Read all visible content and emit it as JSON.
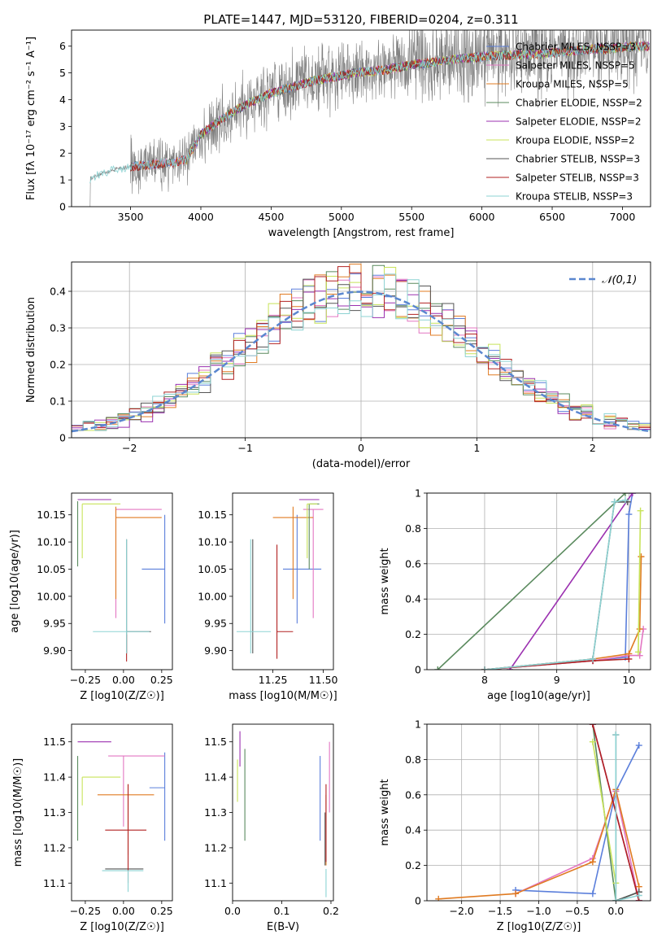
{
  "colors": {
    "series": [
      "#5b7fdb",
      "#e377c2",
      "#e07b22",
      "#5a8a5e",
      "#9b30b0",
      "#c8e35a",
      "#555555",
      "#b22222",
      "#8dd3d3"
    ],
    "spectrum": "#808080",
    "grid": "#b0b0b0",
    "normal_curve": "#5b87cf"
  },
  "chart_data": [
    {
      "id": "spectrum",
      "type": "line",
      "title": "PLATE=1447, MJD=53120, FIBERID=0204, z=0.311",
      "xlabel": "wavelength [Angstrom, rest frame]",
      "ylabel": "Flux [fλ 10⁻¹⁷ erg cm⁻² s⁻¹ A⁻¹]",
      "xlim": [
        3080,
        7200
      ],
      "ylim": [
        0,
        6.6
      ],
      "xticks": [
        3500,
        4000,
        4500,
        5000,
        5500,
        6000,
        6500,
        7000
      ],
      "yticks": [
        0,
        1,
        2,
        3,
        4,
        5,
        6
      ],
      "grid": false,
      "legend_position": "right",
      "legend": [
        "Chabrier MILES, NSSP=3",
        "Salpeter MILES, NSSP=5",
        "Kroupa MILES, NSSP=5",
        "Chabrier ELODIE, NSSP=2",
        "Salpeter ELODIE, NSSP=2",
        "Kroupa ELODIE, NSSP=2",
        "Chabrier STELIB, NSSP=3",
        "Salpeter STELIB, NSSP=3",
        "Kroupa STELIB, NSSP=3"
      ],
      "model_continuum": {
        "x": [
          3210,
          3300,
          3400,
          3500,
          3600,
          3700,
          3800,
          3900,
          4000,
          4100,
          4200,
          4300,
          4400,
          4500,
          4600,
          4700,
          4800,
          4900,
          5000,
          5100,
          5200,
          5300,
          5400,
          5500,
          5600,
          5700,
          5800,
          5900,
          6000,
          6100,
          6200,
          6300,
          6400,
          6500,
          6600,
          6700,
          6800,
          6900,
          7000,
          7100
        ],
        "y": [
          1.05,
          1.25,
          1.4,
          1.5,
          1.55,
          1.6,
          1.65,
          1.75,
          2.7,
          3.1,
          3.45,
          3.75,
          4.0,
          4.25,
          4.4,
          4.55,
          4.7,
          4.8,
          4.9,
          5.0,
          5.05,
          5.1,
          5.2,
          5.3,
          5.35,
          5.45,
          5.5,
          5.55,
          5.6,
          5.65,
          5.65,
          5.7,
          5.7,
          5.75,
          5.8,
          5.85,
          5.9,
          5.9,
          5.95,
          6.0
        ]
      }
    },
    {
      "id": "residuals",
      "type": "histogram",
      "xlabel": "(data-model)/error",
      "ylabel": "Normed distribution",
      "xlim": [
        -2.5,
        2.5
      ],
      "ylim": [
        0,
        0.48
      ],
      "xticks": [
        -2,
        -1,
        0,
        1,
        2
      ],
      "yticks": [
        0.0,
        0.1,
        0.2,
        0.3,
        0.4
      ],
      "grid": true,
      "legend_position": "top-right",
      "legend": [
        "𝒩(0,1)"
      ],
      "normal_pdf": {
        "mean": 0,
        "std": 1
      }
    },
    {
      "id": "age-vs-Z",
      "type": "errorbar",
      "xlabel": "Z [log10(Z/Z☉)]",
      "ylabel": "age  [log10(age/yr)]",
      "xlim": [
        -0.34,
        0.32
      ],
      "ylim": [
        9.865,
        10.19
      ],
      "xticks": [
        -0.25,
        0.0,
        0.25
      ],
      "xticklabels": [
        "−0.25",
        "0.00",
        "0.25"
      ],
      "yticks": [
        9.9,
        9.95,
        10.0,
        10.05,
        10.1,
        10.15
      ],
      "yticklabels": [
        "9.90",
        "9.95",
        "10.00",
        "10.05",
        "10.10",
        "10.15"
      ],
      "grid": false,
      "points": [
        {
          "x": 0.02,
          "y": 9.935,
          "x_err": [
            0.2,
            0.2
          ],
          "y_err": [
            0.05,
            0.17
          ]
        },
        {
          "x": 0.0,
          "y": 10.15,
          "x_err": [
            0.2,
            0.1
          ],
          "y_err": [
            0.03,
            0.02
          ]
        },
        {
          "x": -0.08,
          "y": 10.15,
          "x_err": [
            0.0,
            0.1
          ],
          "y_err": [
            0.2,
            0.02
          ]
        },
        {
          "x": -0.3,
          "y": 10.175,
          "x_err": [
            0.0,
            0.0
          ],
          "y_err": [
            0.12,
            0.0
          ]
        },
        {
          "x": 0.0,
          "y": 10.175,
          "x_err": [
            0.3,
            0.0
          ],
          "y_err": [
            0.0,
            0.0
          ]
        },
        {
          "x": -0.27,
          "y": 10.17,
          "x_err": [
            0.0,
            0.25
          ],
          "y_err": [
            0.1,
            0.0
          ]
        },
        {
          "x": 0.02,
          "y": 9.935,
          "x_err": [
            0.0,
            0.1
          ],
          "y_err": [
            0.04,
            0.17
          ]
        },
        {
          "x": 0.02,
          "y": 9.93,
          "x_err": [
            0.0,
            0.0
          ],
          "y_err": [
            0.05,
            0.17
          ]
        },
        {
          "x": 0.02,
          "y": 9.935,
          "x_err": [
            0.22,
            0.15
          ],
          "y_err": [
            0.04,
            0.17
          ]
        },
        {
          "x": 0.27,
          "y": 10.05,
          "x_err": [
            0.15,
            0.0
          ],
          "y_err": [
            0.1,
            0.1
          ]
        }
      ]
    },
    {
      "id": "age-vs-mass",
      "type": "errorbar",
      "xlabel": "mass [log10(M/M☉)]",
      "ylabel": "",
      "xlim": [
        11.05,
        11.55
      ],
      "ylim": [
        9.865,
        10.19
      ],
      "xticks": [
        11.25,
        11.5
      ],
      "xticklabels": [
        "11.25",
        "11.50"
      ],
      "yticks": [
        9.9,
        9.95,
        10.0,
        10.05,
        10.1,
        10.15
      ],
      "yticklabels": [
        "9.90",
        "9.95",
        "10.00",
        "10.05",
        "10.10",
        "10.15"
      ],
      "grid": false
    },
    {
      "id": "weight-vs-age",
      "type": "line",
      "xlabel": "age  [log10(age/yr)]",
      "ylabel": "mass weight",
      "xlim": [
        7.2,
        10.3
      ],
      "ylim": [
        0,
        1.0
      ],
      "xticks": [
        8,
        9,
        10
      ],
      "yticks": [
        0.0,
        0.2,
        0.4,
        0.6,
        0.8,
        1.0
      ],
      "grid": true,
      "series": [
        {
          "x": [
            8.0,
            9.5,
            9.95,
            10.0,
            10.05
          ],
          "y": [
            0.0,
            0.05,
            0.07,
            0.88,
            1.0
          ]
        },
        {
          "x": [
            8.0,
            9.5,
            10.0,
            10.15,
            10.2
          ],
          "y": [
            0.0,
            0.05,
            0.08,
            0.08,
            0.23
          ]
        },
        {
          "x": [
            8.0,
            9.5,
            10.0,
            10.15,
            10.17
          ],
          "y": [
            0.0,
            0.06,
            0.09,
            0.23,
            0.64
          ]
        },
        {
          "x": [
            7.35,
            9.95
          ],
          "y": [
            0.0,
            1.0
          ]
        },
        {
          "x": [
            8.35,
            10.05
          ],
          "y": [
            0.0,
            1.0
          ]
        },
        {
          "x": [
            10.13,
            10.16
          ],
          "y": [
            0.1,
            0.9
          ]
        },
        {
          "x": [
            8.0,
            9.5,
            9.8,
            9.98
          ],
          "y": [
            0.0,
            0.06,
            0.95,
            0.95
          ]
        },
        {
          "x": [
            8.0,
            9.5,
            10.0
          ],
          "y": [
            0.0,
            0.05,
            0.06
          ]
        },
        {
          "x": [
            8.0,
            9.5,
            9.8,
            9.95
          ],
          "y": [
            0.0,
            0.06,
            0.95,
            0.96
          ]
        }
      ]
    },
    {
      "id": "mass-vs-Z",
      "type": "errorbar",
      "xlabel": "Z [log10(Z/Z☉)]",
      "ylabel": "mass [log10(M/M☉)]",
      "xlim": [
        -0.34,
        0.32
      ],
      "ylim": [
        11.05,
        11.55
      ],
      "xticks": [
        -0.25,
        0.0,
        0.25
      ],
      "xticklabels": [
        "−0.25",
        "0.00",
        "0.25"
      ],
      "yticks": [
        11.1,
        11.2,
        11.3,
        11.4,
        11.5
      ],
      "yticklabels": [
        "11.1",
        "11.2",
        "11.3",
        "11.4",
        "11.5"
      ],
      "grid": false
    },
    {
      "id": "mass-vs-EBV",
      "type": "errorbar",
      "xlabel": "E(B-V)",
      "ylabel": "",
      "xlim": [
        0.0,
        0.205
      ],
      "ylim": [
        11.05,
        11.55
      ],
      "xticks": [
        0.0,
        0.1,
        0.2
      ],
      "xticklabels": [
        "0.0",
        "0.1",
        "0.2"
      ],
      "yticks": [
        11.1,
        11.2,
        11.3,
        11.4,
        11.5
      ],
      "yticklabels": [
        "11.1",
        "11.2",
        "11.3",
        "11.4",
        "11.5"
      ],
      "grid": false
    },
    {
      "id": "weight-vs-Z",
      "type": "line",
      "xlabel": "Z [log10(Z/Z☉)]",
      "ylabel": "mass weight",
      "xlim": [
        -2.45,
        0.45
      ],
      "ylim": [
        0,
        1.0
      ],
      "xticks": [
        -2.0,
        -1.5,
        -1.0,
        -0.5,
        0.0
      ],
      "xticklabels": [
        "−2.0",
        "−1.5",
        "−1.0",
        "−0.5",
        "0.0"
      ],
      "yticks": [
        0.0,
        0.2,
        0.4,
        0.6,
        0.8,
        1.0
      ],
      "grid": true,
      "series": [
        {
          "x": [
            -1.3,
            -0.3,
            0.0,
            0.3
          ],
          "y": [
            0.06,
            0.04,
            0.62,
            0.88
          ]
        },
        {
          "x": [
            -1.3,
            -0.3,
            0.0,
            0.3
          ],
          "y": [
            0.04,
            0.24,
            0.62,
            0.0
          ]
        },
        {
          "x": [
            -2.3,
            -1.3,
            -0.3,
            0.0,
            0.3
          ],
          "y": [
            0.01,
            0.04,
            0.22,
            0.63,
            0.08
          ]
        },
        {
          "x": [
            -0.3,
            0.0,
            0.3
          ],
          "y": [
            1.0,
            0.0,
            0.05
          ]
        },
        {
          "x": [
            -0.3,
            0.3
          ],
          "y": [
            1.0,
            0.0
          ]
        },
        {
          "x": [
            -0.3,
            0.0
          ],
          "y": [
            0.9,
            0.1
          ]
        },
        {
          "x": [
            0.0,
            0.0,
            0.3
          ],
          "y": [
            0.94,
            0.0,
            0.05
          ]
        },
        {
          "x": [
            -0.3,
            0.3
          ],
          "y": [
            1.0,
            0.0
          ]
        },
        {
          "x": [
            0.0,
            0.0,
            0.3
          ],
          "y": [
            0.94,
            0.0,
            0.03
          ]
        }
      ]
    }
  ]
}
